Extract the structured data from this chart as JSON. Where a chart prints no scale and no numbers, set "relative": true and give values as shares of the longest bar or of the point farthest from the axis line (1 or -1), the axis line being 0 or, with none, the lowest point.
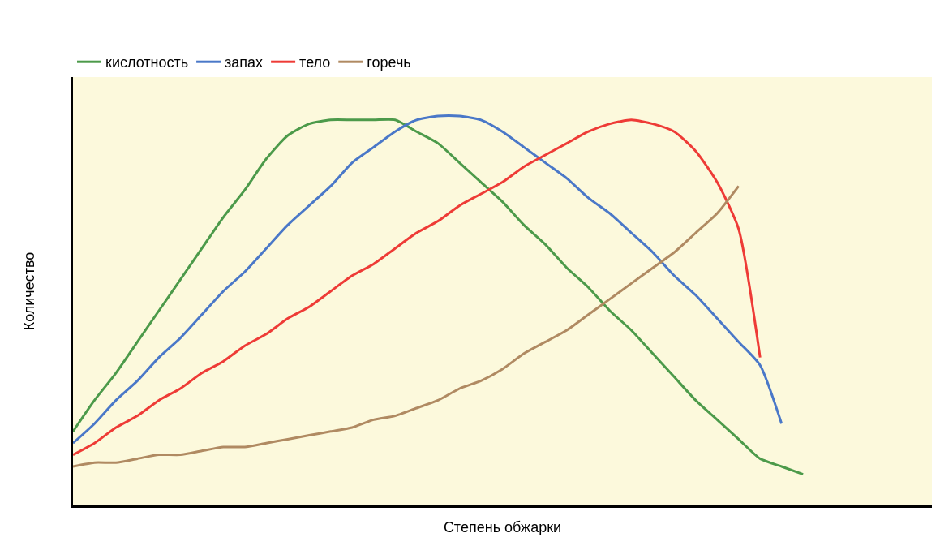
{
  "chart_data": {
    "type": "line",
    "relative": true,
    "xlabel": "Степень обжарки",
    "ylabel": "Количество",
    "legend": "top left",
    "grid": false,
    "marker": "none",
    "line_style": "solid",
    "categories": [
      null,
      null,
      null,
      null,
      null,
      null,
      null,
      null,
      null,
      null,
      null,
      null,
      null,
      null,
      null,
      null,
      null,
      null,
      null,
      null,
      null,
      null,
      null,
      null,
      null,
      null,
      null,
      null,
      null,
      null,
      null,
      null,
      null,
      null,
      null,
      null,
      null,
      null,
      null,
      null,
      null
    ],
    "series": [
      {
        "name": "кислотность",
        "color": "#4c9a4a",
        "values": [
          0.19,
          0.27,
          0.34,
          0.42,
          0.5,
          0.58,
          0.66,
          0.74,
          0.81,
          0.89,
          0.95,
          0.98,
          0.99,
          0.99,
          0.99,
          0.99,
          0.96,
          0.93,
          0.88,
          0.83,
          0.78,
          0.72,
          0.67,
          0.61,
          0.56,
          0.5,
          0.45,
          0.39,
          0.33,
          0.27,
          0.22,
          0.17,
          0.12,
          0.1,
          0.08,
          null,
          null,
          null,
          null,
          null,
          null
        ]
      },
      {
        "name": "запах",
        "color": "#4a78c8",
        "values": [
          0.16,
          0.21,
          0.27,
          0.32,
          0.38,
          0.43,
          0.49,
          0.55,
          0.6,
          0.66,
          0.72,
          0.77,
          0.82,
          0.88,
          0.92,
          0.96,
          0.99,
          1.0,
          1.0,
          0.99,
          0.96,
          0.92,
          0.88,
          0.84,
          0.79,
          0.75,
          0.7,
          0.65,
          0.59,
          0.54,
          0.48,
          0.42,
          0.36,
          0.21,
          null,
          null,
          null,
          null,
          null,
          null,
          null
        ]
      },
      {
        "name": "тело",
        "color": "#ee3b36",
        "values": [
          0.13,
          0.16,
          0.2,
          0.23,
          0.27,
          0.3,
          0.34,
          0.37,
          0.41,
          0.44,
          0.48,
          0.51,
          0.55,
          0.59,
          0.62,
          0.66,
          0.7,
          0.73,
          0.77,
          0.8,
          0.83,
          0.87,
          0.9,
          0.93,
          0.96,
          0.98,
          0.99,
          0.98,
          0.96,
          0.91,
          0.83,
          0.71,
          0.38,
          null,
          null,
          null,
          null,
          null,
          null,
          null,
          null
        ]
      },
      {
        "name": "горечь",
        "color": "#b08a62",
        "values": [
          0.1,
          0.11,
          0.11,
          0.12,
          0.13,
          0.13,
          0.14,
          0.15,
          0.15,
          0.16,
          0.17,
          0.18,
          0.19,
          0.2,
          0.22,
          0.23,
          0.25,
          0.27,
          0.3,
          0.32,
          0.35,
          0.39,
          0.42,
          0.45,
          0.49,
          0.53,
          0.57,
          0.61,
          0.65,
          0.7,
          0.75,
          0.82,
          null,
          null,
          null,
          null,
          null,
          null,
          null,
          null,
          null
        ]
      }
    ]
  }
}
